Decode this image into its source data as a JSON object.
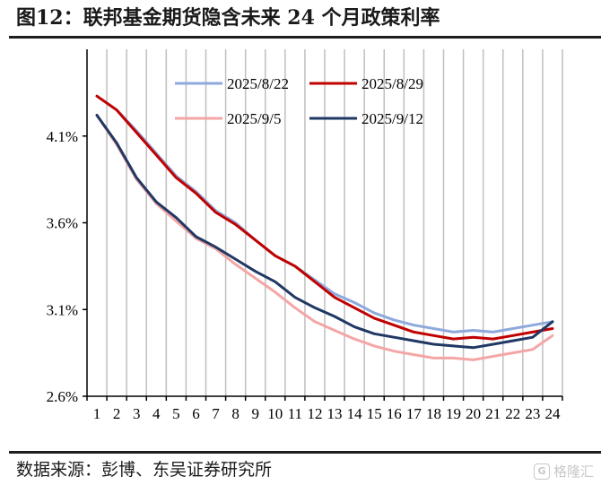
{
  "header": {
    "title": "图12：联邦基金期货隐含未来 24 个月政策利率"
  },
  "footer": {
    "source": "数据来源：彭博、东吴证券研究所",
    "watermark": "格隆汇",
    "watermark_logo": "G"
  },
  "chart_data": {
    "type": "line",
    "title": "",
    "xlabel": "",
    "ylabel": "",
    "x": [
      1,
      2,
      3,
      4,
      5,
      6,
      7,
      8,
      9,
      10,
      11,
      12,
      13,
      14,
      15,
      16,
      17,
      18,
      19,
      20,
      21,
      22,
      23,
      24
    ],
    "ylim": [
      2.6,
      4.6
    ],
    "yticks": [
      2.6,
      3.1,
      3.6,
      4.1
    ],
    "ytick_labels": [
      "2.6%",
      "3.1%",
      "3.6%",
      "4.1%"
    ],
    "grid": "vertical",
    "legend_position": "top",
    "series": [
      {
        "name": "2025/8/22",
        "color": "#8ea9db",
        "values": [
          4.33,
          4.25,
          4.13,
          4.0,
          3.87,
          3.78,
          3.67,
          3.6,
          3.5,
          3.41,
          3.35,
          3.27,
          3.19,
          3.14,
          3.08,
          3.04,
          3.01,
          2.99,
          2.97,
          2.98,
          2.97,
          2.99,
          3.01,
          3.03
        ]
      },
      {
        "name": "2025/8/29",
        "color": "#c00000",
        "values": [
          4.33,
          4.25,
          4.12,
          3.99,
          3.86,
          3.77,
          3.66,
          3.59,
          3.5,
          3.41,
          3.35,
          3.26,
          3.17,
          3.11,
          3.05,
          3.01,
          2.97,
          2.95,
          2.93,
          2.94,
          2.93,
          2.95,
          2.97,
          2.99
        ]
      },
      {
        "name": "2025/9/5",
        "color": "#f4a6a6",
        "values": [
          4.22,
          4.05,
          3.85,
          3.71,
          3.61,
          3.51,
          3.45,
          3.36,
          3.28,
          3.2,
          3.11,
          3.03,
          2.98,
          2.93,
          2.89,
          2.86,
          2.84,
          2.82,
          2.82,
          2.81,
          2.83,
          2.85,
          2.87,
          2.95
        ]
      },
      {
        "name": "2025/9/12",
        "color": "#203864",
        "values": [
          4.22,
          4.06,
          3.86,
          3.72,
          3.63,
          3.52,
          3.46,
          3.39,
          3.32,
          3.26,
          3.17,
          3.11,
          3.06,
          3.0,
          2.96,
          2.94,
          2.92,
          2.9,
          2.89,
          2.88,
          2.9,
          2.92,
          2.94,
          3.03
        ]
      }
    ]
  }
}
